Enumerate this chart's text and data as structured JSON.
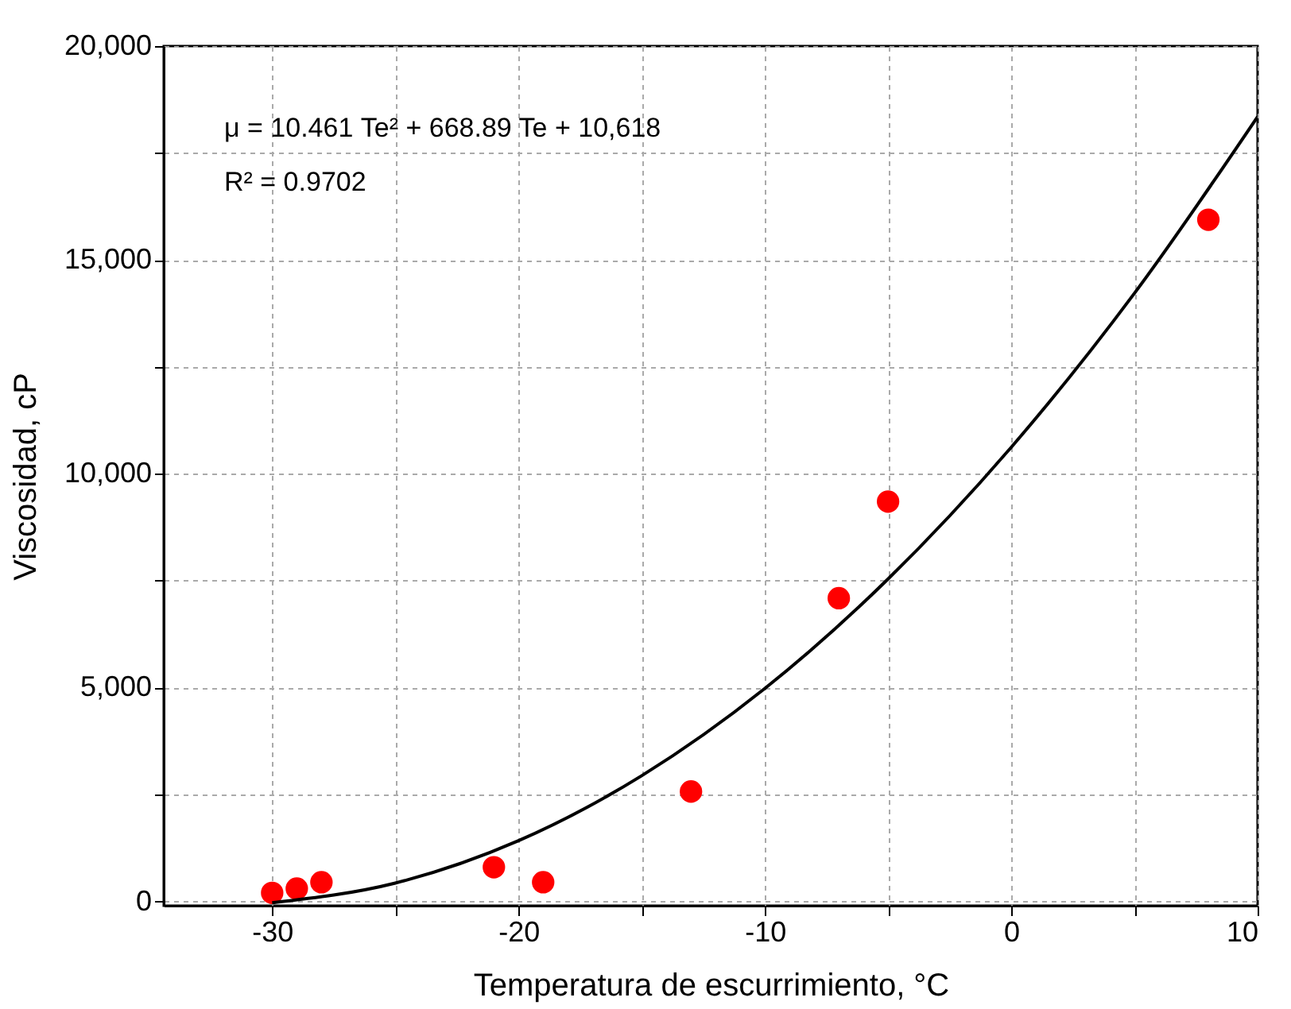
{
  "chart_data": {
    "type": "scatter",
    "xlabel": "Temperatura de escurrimiento,  °C",
    "ylabel": "Viscosidad,  cP",
    "annotations": [
      "μ = 10.461 Te² + 668.89 Te + 10,618",
      "R² = 0.9702"
    ],
    "series": [
      {
        "color": "#ff0000",
        "marker": "circle",
        "x": [
          -30,
          -29,
          -28,
          -21,
          -19,
          -13,
          -7,
          -5,
          8
        ],
        "values": [
          200,
          300,
          450,
          800,
          450,
          2570,
          7090,
          9350,
          15940
        ]
      },
      {
        "type": "line",
        "color": "#000000",
        "x": [
          -30,
          -25,
          -20,
          -15,
          -10,
          -5,
          0,
          5,
          10
        ],
        "values": [
          -30,
          430,
          1420,
          2940,
          4980,
          7540,
          10620,
          14220,
          18350
        ]
      }
    ],
    "xlim": [
      -34.4,
      10
    ],
    "ylim": [
      -100,
      20000
    ],
    "xticks": [
      -30,
      {
        "value": -25,
        "label": null
      },
      -20,
      {
        "value": -15,
        "label": null
      },
      -10,
      {
        "value": -5,
        "label": null
      },
      0,
      {
        "value": 5,
        "label": null
      },
      10
    ],
    "yticks": [
      0,
      {
        "value": 2500,
        "label": null
      },
      {
        "value": 5000,
        "label": "5,000"
      },
      {
        "value": 7500,
        "label": null
      },
      {
        "value": 10000,
        "label": "10,000"
      },
      {
        "value": 12500,
        "label": null
      },
      {
        "value": 15000,
        "label": "15,000"
      },
      {
        "value": 17500,
        "label": null
      },
      {
        "value": 20000,
        "label": "20,000"
      }
    ],
    "grid": true,
    "legend": false,
    "line_style": "solid"
  }
}
